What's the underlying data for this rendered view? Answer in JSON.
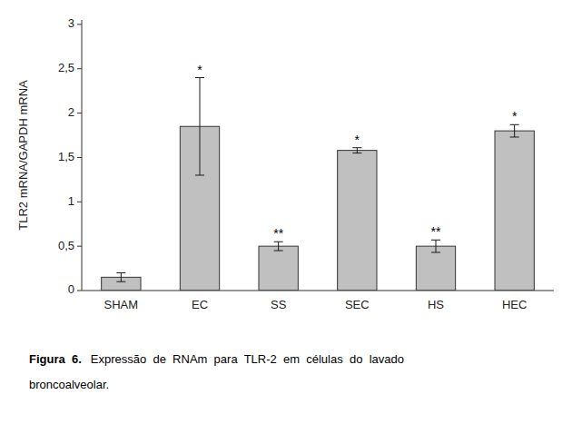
{
  "chart_data": {
    "type": "bar",
    "categories": [
      "SHAM",
      "EC",
      "SS",
      "SEC",
      "HS",
      "HEC"
    ],
    "values": [
      0.15,
      1.85,
      0.5,
      1.58,
      0.5,
      1.8
    ],
    "errors": [
      0.05,
      0.55,
      0.05,
      0.03,
      0.07,
      0.07
    ],
    "annotations": [
      null,
      "*",
      "**",
      "*",
      "**",
      "*"
    ],
    "color": "#c0c0c0",
    "ylabel": "TLR2 mRNA/GAPDH mRNA",
    "ylim": [
      0,
      3.05
    ],
    "yticks": [
      0,
      {
        "value": 0.5,
        "label": "0,5"
      },
      1,
      {
        "value": 1.5,
        "label": "1,5"
      },
      2,
      {
        "value": 2.5,
        "label": "2,5"
      },
      3
    ],
    "grid": false,
    "caption": {
      "bold": "Figura  6.",
      "text": "Expressão  de  RNAm  para  TLR-2  em  células  do  lavado",
      "line2": "broncoalveolar."
    }
  }
}
